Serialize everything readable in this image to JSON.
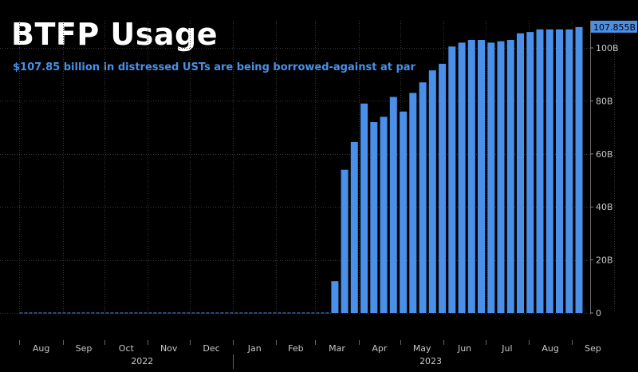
{
  "title": "BTFP Usage",
  "subtitle": "$107.85 billion in distressed USTs are being borrowed-against at par",
  "colors": {
    "background": "#000000",
    "bar": "#4a90e8",
    "grid": "#3a3a3a",
    "axis_text": "#c8c8c8",
    "label_bg": "#4a90e8",
    "label_text": "#000000"
  },
  "chart_data": {
    "type": "bar",
    "title": "BTFP Usage",
    "subtitle": "$107.85 billion in distressed USTs are being borrowed-against at par",
    "xlabel": "",
    "ylabel": "",
    "ylim": [
      0,
      110
    ],
    "y_axis_position": "right",
    "y_ticks": [
      0,
      20,
      40,
      60,
      80,
      100
    ],
    "y_tick_labels": [
      "0",
      "20B",
      "40B",
      "60B",
      "80B",
      "100B"
    ],
    "grid": true,
    "x_month_labels": [
      "Aug",
      "Sep",
      "Oct",
      "Nov",
      "Dec",
      "Jan",
      "Feb",
      "Mar",
      "Apr",
      "May",
      "Jun",
      "Jul",
      "Aug",
      "Sep"
    ],
    "x_year_labels": [
      "2022",
      "2023"
    ],
    "last_value_label": "107.855B",
    "zero_line_start": "2022-08-01",
    "categories": [
      "2023-03-15",
      "2023-03-22",
      "2023-03-29",
      "2023-04-05",
      "2023-04-12",
      "2023-04-19",
      "2023-04-26",
      "2023-05-03",
      "2023-05-10",
      "2023-05-17",
      "2023-05-24",
      "2023-05-31",
      "2023-06-07",
      "2023-06-14",
      "2023-06-21",
      "2023-06-28",
      "2023-07-05",
      "2023-07-12",
      "2023-07-19",
      "2023-07-26",
      "2023-08-02",
      "2023-08-09",
      "2023-08-16",
      "2023-08-23",
      "2023-08-30",
      "2023-09-06"
    ],
    "values": [
      12,
      54,
      64.5,
      79,
      72,
      74,
      81.5,
      76,
      83,
      87,
      91.5,
      94,
      100.5,
      102,
      103,
      103,
      102,
      102.5,
      103,
      105.5,
      106,
      107,
      107,
      107,
      107,
      107.855
    ]
  }
}
